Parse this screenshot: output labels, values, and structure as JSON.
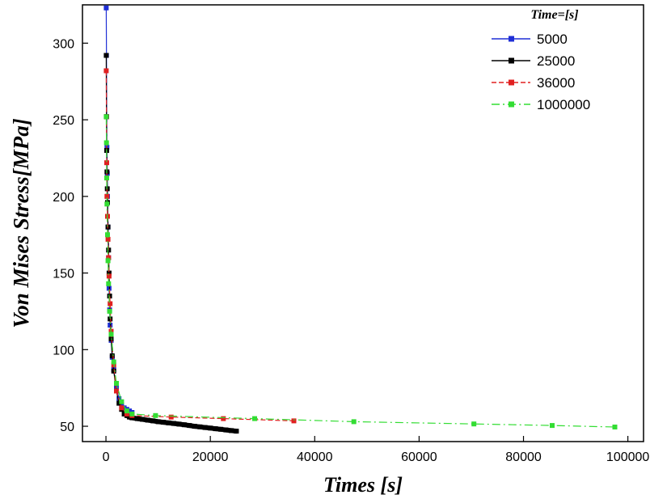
{
  "chart_data": {
    "type": "line",
    "title": "",
    "xlabel": "Times [s]",
    "ylabel": "Von Mises Stress[MPa]",
    "xlim": [
      -4500,
      103000
    ],
    "ylim": [
      40,
      325
    ],
    "x_ticks": [
      0,
      20000,
      40000,
      60000,
      80000,
      100000
    ],
    "y_ticks": [
      50,
      100,
      150,
      200,
      250,
      300
    ],
    "legend": {
      "title": "Time=[s]",
      "placement": "top-right"
    },
    "grid": false,
    "series": [
      {
        "name": "5000",
        "color": "#1f2fd6",
        "x": [
          50,
          100,
          150,
          200,
          250,
          300,
          400,
          500,
          600,
          700,
          800,
          1000,
          1200,
          1500,
          2000,
          2500,
          3000,
          3500,
          4000,
          4500,
          5000
        ],
        "y": [
          323,
          292,
          252,
          232,
          215,
          200,
          180,
          160,
          140,
          126,
          116,
          106,
          95,
          87,
          75,
          68,
          64,
          62,
          61,
          60,
          59
        ]
      },
      {
        "name": "25000",
        "color": "#000000",
        "x": [
          50,
          100,
          150,
          200,
          250,
          300,
          400,
          500,
          600,
          700,
          800,
          1000,
          1200,
          1500,
          2000,
          2500,
          3000,
          3500,
          4000,
          4500,
          5000,
          6000,
          7000,
          8000,
          9000,
          10000,
          11000,
          12000,
          13000,
          14000,
          15000,
          16000,
          17000,
          18000,
          19000,
          20000,
          21000,
          22000,
          23000,
          24000,
          25000
        ],
        "y": [
          292,
          252,
          230,
          216,
          205,
          196,
          180,
          165,
          150,
          135,
          120,
          107,
          96,
          86,
          73,
          65,
          61,
          58,
          57,
          56,
          55.5,
          55,
          54.5,
          54,
          53.5,
          53,
          52.6,
          52.2,
          51.8,
          51.4,
          51,
          50.5,
          50,
          49.6,
          49.2,
          48.8,
          48.4,
          48,
          47.6,
          47.2,
          46.8
        ]
      },
      {
        "name": "36000",
        "color": "#e02020",
        "x": [
          50,
          100,
          150,
          200,
          300,
          400,
          500,
          600,
          800,
          1000,
          1500,
          2000,
          3000,
          4000,
          5000,
          12500,
          22500,
          36000
        ],
        "y": [
          282,
          252,
          222,
          200,
          187,
          172,
          160,
          148,
          130,
          112,
          90,
          73,
          62,
          58,
          57,
          56,
          55,
          53.5
        ]
      },
      {
        "name": "1000000",
        "color": "#33dd33",
        "x": [
          50,
          100,
          150,
          200,
          300,
          400,
          500,
          700,
          1000,
          1500,
          2000,
          3000,
          4000,
          5000,
          9500,
          28500,
          47500,
          70500,
          85500,
          97500
        ],
        "y": [
          252,
          235,
          212,
          195,
          175,
          158,
          143,
          125,
          110,
          92,
          78,
          66,
          60,
          58,
          57,
          55,
          53,
          51.5,
          50.5,
          49.5
        ]
      }
    ]
  }
}
